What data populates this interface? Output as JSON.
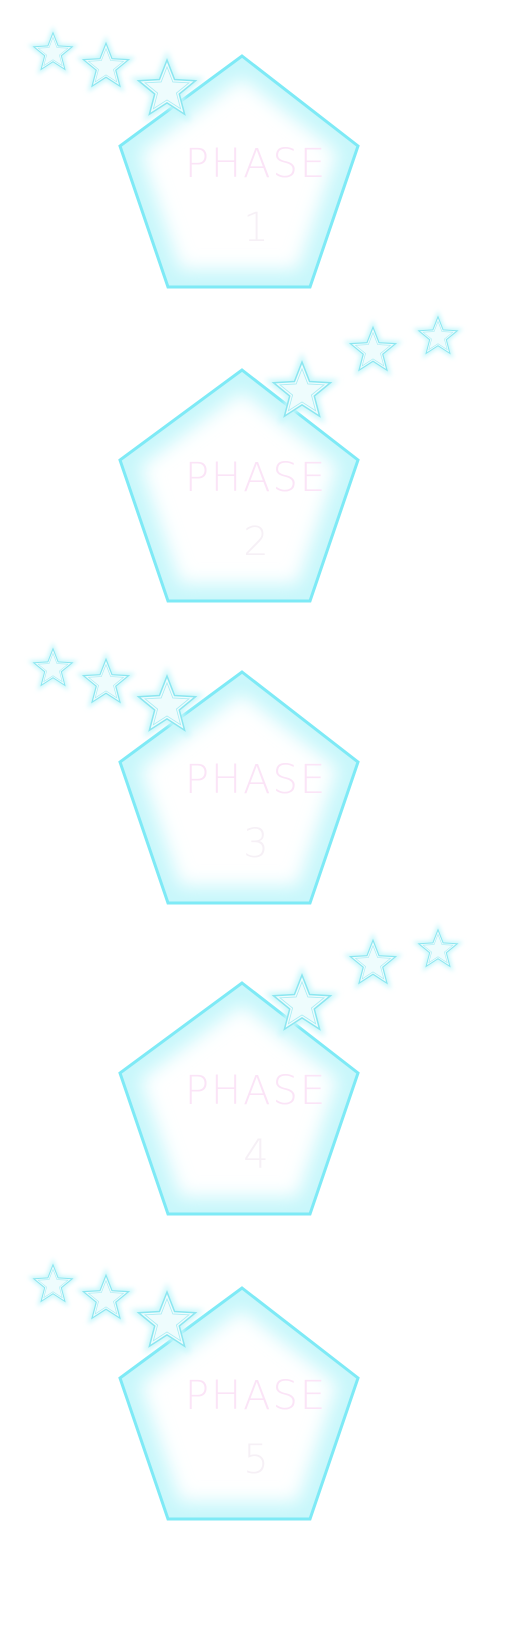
{
  "phases": [
    {
      "label": "PHASE",
      "number": "1",
      "stars": 3
    },
    {
      "label": "PHASE",
      "number": "2",
      "stars": 3
    },
    {
      "label": "PHASE",
      "number": "3",
      "stars": 3
    },
    {
      "label": "PHASE",
      "number": "4",
      "stars": 3
    },
    {
      "label": "PHASE",
      "number": "5",
      "stars": 3
    }
  ],
  "colors": {
    "pentagon_edge": "#7eeaf6",
    "pentagon_glow": "#c8f7fb",
    "pentagon_fill": "#ffffff",
    "star_fill": "#eefcfd",
    "star_edge": "#8be6f0",
    "phase_text": "#fbe4f7",
    "number_text": "#f6f0f6"
  }
}
